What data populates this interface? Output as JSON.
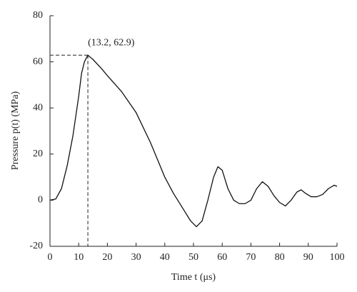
{
  "chart_data": {
    "type": "line",
    "x_label": "Time t (μs)",
    "y_label": "Pressure p(t) (MPa)",
    "x": [
      0,
      2,
      4,
      6,
      8,
      10,
      11,
      12,
      13.2,
      15,
      18,
      20,
      25,
      30,
      35,
      40,
      43,
      46,
      49,
      51,
      53,
      55,
      57,
      58.5,
      60,
      62,
      64,
      66,
      68,
      70,
      72,
      74,
      76,
      78,
      80,
      82,
      84,
      86,
      87.5,
      89,
      91,
      93,
      95,
      97,
      99,
      100
    ],
    "series": [
      {
        "color": "#111111",
        "values": [
          0,
          0.5,
          5,
          15,
          28,
          45,
          55,
          60,
          62.9,
          61,
          57,
          54,
          47,
          38,
          25,
          10,
          3,
          -3,
          -9,
          -11.5,
          -9,
          0,
          10,
          14.5,
          13,
          5,
          0,
          -1.5,
          -1.5,
          0,
          5,
          8,
          6,
          2,
          -1,
          -2.5,
          0,
          3.5,
          4.5,
          3,
          1.5,
          1.5,
          2.5,
          5,
          6.5,
          6
        ]
      }
    ],
    "peak": {
      "x": 13.2,
      "y": 62.9,
      "label": "(13.2, 62.9)"
    },
    "xlim": [
      0,
      100
    ],
    "xticks": [
      0,
      10,
      20,
      30,
      40,
      50,
      60,
      70,
      80,
      90,
      100
    ],
    "ylim": [
      -20,
      80
    ],
    "yticks": [
      -20,
      0,
      20,
      40,
      60,
      80
    ]
  }
}
